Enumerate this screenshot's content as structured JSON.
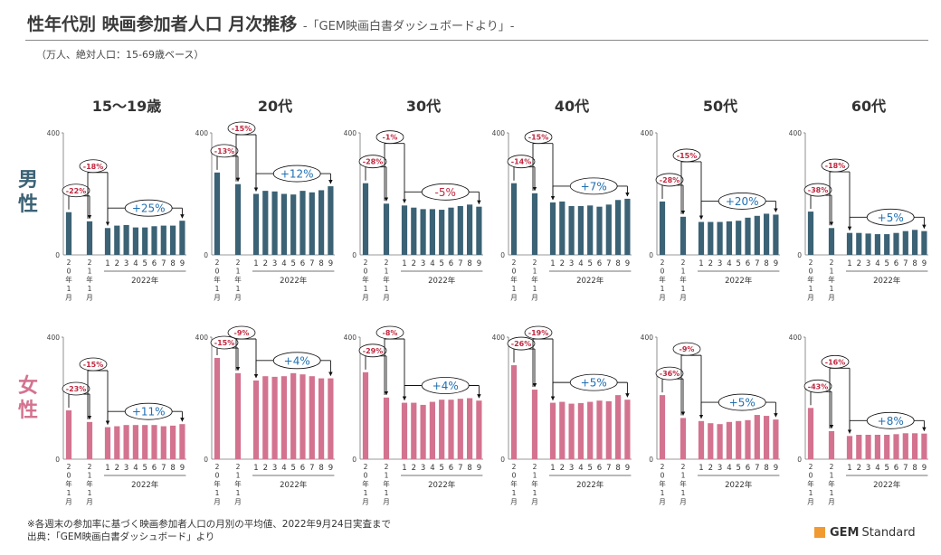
{
  "header": {
    "title": "性年代別 映画参加者人口 月次推移",
    "subtitle": "-「GEM映画白書ダッシュボードより」-",
    "unit_note": "（万人、絶対人口：15-69歳ベース）"
  },
  "genders": [
    {
      "label": "男性",
      "color": "#3b6275"
    },
    {
      "label": "女性",
      "color": "#d37390"
    }
  ],
  "age_groups": [
    "15～19歳",
    "20代",
    "30代",
    "40代",
    "50代",
    "60代"
  ],
  "footer": {
    "note": "※各週末の参加率に基づく映画参加者人口の月別の平均値、2022年9月24日実査まで",
    "source": "出典：「GEM映画白書ダッシュボード」より"
  },
  "logo": {
    "brand": "GEM",
    "word": "Standard",
    "color": "#f09a31"
  },
  "colors": {
    "male": "#3b6275",
    "female": "#d37390",
    "negative": "#c0283f",
    "positive": "#1f6fb2",
    "axis": "#555555"
  },
  "chart_data": {
    "type": "bar",
    "ylim": [
      0,
      400
    ],
    "ytick_labels": [
      "0",
      "400"
    ],
    "categories": [
      "20年1月",
      "21年1月",
      "1",
      "2",
      "3",
      "4",
      "5",
      "6",
      "7",
      "8",
      "9"
    ],
    "group_label": "2022年",
    "panels": [
      {
        "gender": "男性",
        "age": "15～19歳",
        "values": [
          140,
          110,
          88,
          96,
          98,
          90,
          90,
          94,
          96,
          96,
          112
        ],
        "pct_2020": "-22%",
        "pct_2021": "-18%",
        "pct_2022": "+25%"
      },
      {
        "gender": "男性",
        "age": "20代",
        "values": [
          270,
          232,
          200,
          210,
          208,
          200,
          198,
          210,
          205,
          212,
          225
        ],
        "pct_2020": "-13%",
        "pct_2021": "-15%",
        "pct_2022": "+12%"
      },
      {
        "gender": "男性",
        "age": "30代",
        "values": [
          235,
          168,
          162,
          155,
          150,
          150,
          148,
          155,
          160,
          165,
          158
        ],
        "pct_2020": "-28%",
        "pct_2021": "-1%",
        "pct_2022": "-5%"
      },
      {
        "gender": "男性",
        "age": "40代",
        "values": [
          235,
          202,
          172,
          175,
          160,
          160,
          162,
          158,
          165,
          180,
          184
        ],
        "pct_2020": "-14%",
        "pct_2021": "-15%",
        "pct_2022": "+7%"
      },
      {
        "gender": "男性",
        "age": "50代",
        "values": [
          175,
          125,
          108,
          108,
          108,
          110,
          112,
          122,
          128,
          135,
          132
        ],
        "pct_2020": "-28%",
        "pct_2021": "-15%",
        "pct_2022": "+20%"
      },
      {
        "gender": "男性",
        "age": "60代",
        "values": [
          142,
          88,
          72,
          72,
          70,
          68,
          68,
          72,
          78,
          82,
          78
        ],
        "pct_2020": "-38%",
        "pct_2021": "-18%",
        "pct_2022": "+5%"
      },
      {
        "gender": "女性",
        "age": "15～19歳",
        "values": [
          160,
          122,
          105,
          108,
          112,
          112,
          112,
          112,
          108,
          110,
          115
        ],
        "pct_2020": "-23%",
        "pct_2021": "-15%",
        "pct_2022": "+11%"
      },
      {
        "gender": "女性",
        "age": "20代",
        "values": [
          332,
          282,
          258,
          272,
          270,
          272,
          282,
          278,
          272,
          265,
          265
        ],
        "pct_2020": "-15%",
        "pct_2021": "-9%",
        "pct_2022": "+4%"
      },
      {
        "gender": "女性",
        "age": "30代",
        "values": [
          285,
          202,
          185,
          185,
          178,
          188,
          195,
          195,
          198,
          200,
          192
        ],
        "pct_2020": "-29%",
        "pct_2021": "-8%",
        "pct_2022": "+4%"
      },
      {
        "gender": "女性",
        "age": "40代",
        "values": [
          308,
          228,
          185,
          188,
          182,
          184,
          188,
          192,
          190,
          210,
          195
        ],
        "pct_2020": "-26%",
        "pct_2021": "-19%",
        "pct_2022": "+5%"
      },
      {
        "gender": "女性",
        "age": "50代",
        "values": [
          210,
          135,
          125,
          118,
          115,
          122,
          125,
          128,
          145,
          142,
          130
        ],
        "pct_2020": "-36%",
        "pct_2021": "-9%",
        "pct_2022": "+5%"
      },
      {
        "gender": "女性",
        "age": "60代",
        "values": [
          168,
          92,
          76,
          80,
          80,
          80,
          80,
          82,
          85,
          85,
          84
        ],
        "pct_2020": "-43%",
        "pct_2021": "-16%",
        "pct_2022": "+8%"
      }
    ]
  }
}
